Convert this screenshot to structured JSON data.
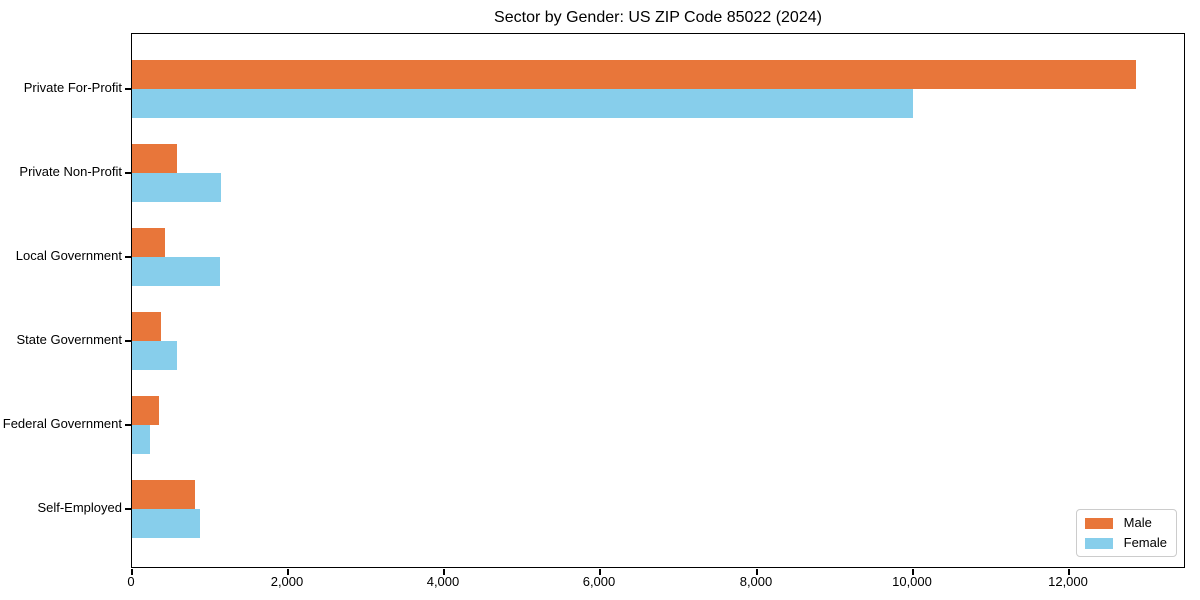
{
  "title": "Sector by Gender: US ZIP Code 85022 (2024)",
  "chart_data": {
    "type": "bar",
    "orientation": "horizontal",
    "title": "Sector by Gender: US ZIP Code 85022 (2024)",
    "categories": [
      "Private For-Profit",
      "Private Non-Profit",
      "Local Government",
      "State Government",
      "Federal Government",
      "Self-Employed"
    ],
    "series": [
      {
        "name": "Male",
        "color": "#e8763a",
        "values": [
          12860,
          580,
          420,
          370,
          350,
          810
        ]
      },
      {
        "name": "Female",
        "color": "#87ceeb",
        "values": [
          10000,
          1140,
          1130,
          580,
          230,
          870
        ]
      }
    ],
    "xlabel": "",
    "ylabel": "",
    "xlim": [
      0,
      13500
    ],
    "x_ticks": [
      0,
      2000,
      4000,
      6000,
      8000,
      10000,
      12000
    ],
    "x_tick_labels": [
      "0",
      "2,000",
      "4,000",
      "6,000",
      "8,000",
      "10,000",
      "12,000"
    ],
    "grid": false,
    "legend": {
      "position": "lower right",
      "entries": [
        "Male",
        "Female"
      ]
    }
  },
  "colors": {
    "male": "#e8763a",
    "female": "#87ceeb",
    "spine": "#000000",
    "legend_border": "#cccccc",
    "background": "#ffffff"
  }
}
